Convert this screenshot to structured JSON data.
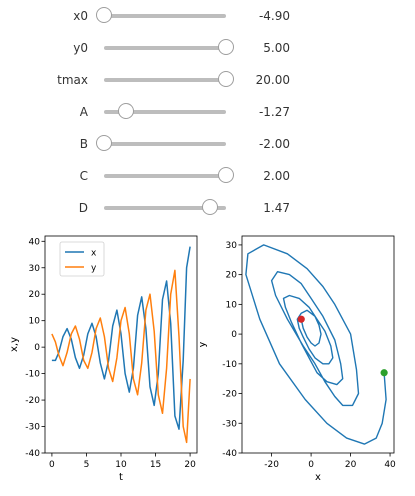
{
  "sliders": [
    {
      "id": "x0",
      "label": "x0",
      "value": "-4.90",
      "fraction": 0.0
    },
    {
      "id": "y0",
      "label": "y0",
      "value": "5.00",
      "fraction": 1.0
    },
    {
      "id": "tmax",
      "label": "tmax",
      "value": "20.00",
      "fraction": 1.0
    },
    {
      "id": "A",
      "label": "A",
      "value": "-1.27",
      "fraction": 0.18
    },
    {
      "id": "B",
      "label": "B",
      "value": "-2.00",
      "fraction": 0.0
    },
    {
      "id": "C",
      "label": "C",
      "value": "2.00",
      "fraction": 1.0
    },
    {
      "id": "D",
      "label": "D",
      "value": "1.47",
      "fraction": 0.87
    }
  ],
  "colors": {
    "x_series": "#1f77b4",
    "y_series": "#ff7f0e",
    "start_point": "#2ca02c",
    "end_point": "#d62728",
    "slider_track": "#bdbdbd"
  },
  "chart_data": [
    {
      "type": "line",
      "xlabel": "t",
      "ylabel": "x,y",
      "xlim": [
        -1,
        21
      ],
      "ylim": [
        -40,
        42
      ],
      "xticks": [
        0,
        5,
        10,
        15,
        20
      ],
      "yticks": [
        -40,
        -30,
        -20,
        -10,
        0,
        10,
        20,
        30,
        40
      ],
      "legend": {
        "position": "top-left",
        "entries": [
          "x",
          "y"
        ]
      },
      "series": [
        {
          "name": "x",
          "t": [
            0,
            0.5,
            1,
            1.6,
            2.2,
            2.8,
            3.4,
            4,
            4.6,
            5.2,
            5.8,
            6.4,
            7,
            7.6,
            8.2,
            8.8,
            9.4,
            10,
            10.6,
            11.2,
            11.8,
            12.4,
            13,
            13.6,
            14.2,
            14.8,
            15.4,
            16,
            16.6,
            17.2,
            17.8,
            18.4,
            19,
            19.5,
            20
          ],
          "values": [
            -5,
            -5,
            -2,
            4,
            7,
            3,
            -4,
            -8,
            -3,
            5,
            9,
            4,
            -6,
            -12,
            -5,
            8,
            14,
            5,
            -10,
            -17,
            -8,
            12,
            19,
            7,
            -15,
            -22,
            -10,
            18,
            25,
            9,
            -26,
            -31,
            -5,
            30,
            38
          ]
        },
        {
          "name": "y",
          "t": [
            0,
            0.5,
            1,
            1.6,
            2.2,
            2.8,
            3.4,
            4,
            4.6,
            5.2,
            5.8,
            6.4,
            7,
            7.6,
            8.2,
            8.8,
            9.4,
            10,
            10.6,
            11.2,
            11.8,
            12.4,
            13,
            13.6,
            14.2,
            14.8,
            15.4,
            16,
            16.6,
            17.2,
            17.8,
            18.4,
            19,
            19.5,
            20
          ],
          "values": [
            5,
            2,
            -3,
            -7,
            -2,
            5,
            8,
            3,
            -5,
            -8,
            -2,
            7,
            11,
            4,
            -8,
            -13,
            -4,
            10,
            15,
            5,
            -12,
            -18,
            -6,
            14,
            20,
            6,
            -18,
            -25,
            -8,
            20,
            29,
            4,
            -30,
            -36,
            -12
          ]
        }
      ]
    },
    {
      "type": "line",
      "xlabel": "x",
      "ylabel": "y",
      "xlim": [
        -35,
        42
      ],
      "ylim": [
        -40,
        33
      ],
      "xticks": [
        -20,
        0,
        20,
        40
      ],
      "yticks": [
        -40,
        -30,
        -20,
        -10,
        0,
        10,
        20,
        30
      ],
      "series": [
        {
          "name": "",
          "x": [
            37,
            38,
            36,
            33,
            27,
            18,
            8,
            -3,
            -16,
            -26,
            -33,
            -32,
            -24,
            -12,
            -2,
            6,
            12,
            20,
            23,
            24,
            21,
            16,
            12,
            7,
            2,
            -4,
            -12,
            -18,
            -20,
            -17,
            -11,
            -5,
            0,
            6,
            12,
            15,
            16,
            13,
            8,
            3,
            -1,
            -5,
            -10,
            -13,
            -14,
            -11,
            -6,
            -1,
            3,
            7,
            10,
            11,
            9,
            6,
            2,
            -1,
            -4,
            -6,
            -7,
            -5,
            -2,
            0,
            2,
            4,
            5,
            4,
            2,
            0,
            -2,
            -4,
            -5
          ],
          "y": [
            -13,
            -22,
            -30,
            -35,
            -37,
            -35,
            -30,
            -22,
            -10,
            5,
            20,
            27,
            30,
            27,
            22,
            16,
            10,
            0,
            -12,
            -20,
            -24,
            -24,
            -21,
            -16,
            -10,
            -4,
            5,
            13,
            18,
            21,
            20,
            17,
            12,
            6,
            -2,
            -10,
            -15,
            -17,
            -16,
            -13,
            -8,
            -3,
            4,
            9,
            12,
            13,
            12,
            9,
            5,
            1,
            -4,
            -8,
            -10,
            -10,
            -8,
            -5,
            -1,
            2,
            5,
            7,
            8,
            7,
            6,
            3,
            0,
            -3,
            -4,
            -3,
            -1,
            2,
            5
          ]
        },
        {
          "name": "",
          "x": [
            37
          ],
          "y": [
            -13
          ]
        },
        {
          "name": "",
          "x": [
            -5
          ],
          "y": [
            5
          ]
        }
      ]
    }
  ]
}
